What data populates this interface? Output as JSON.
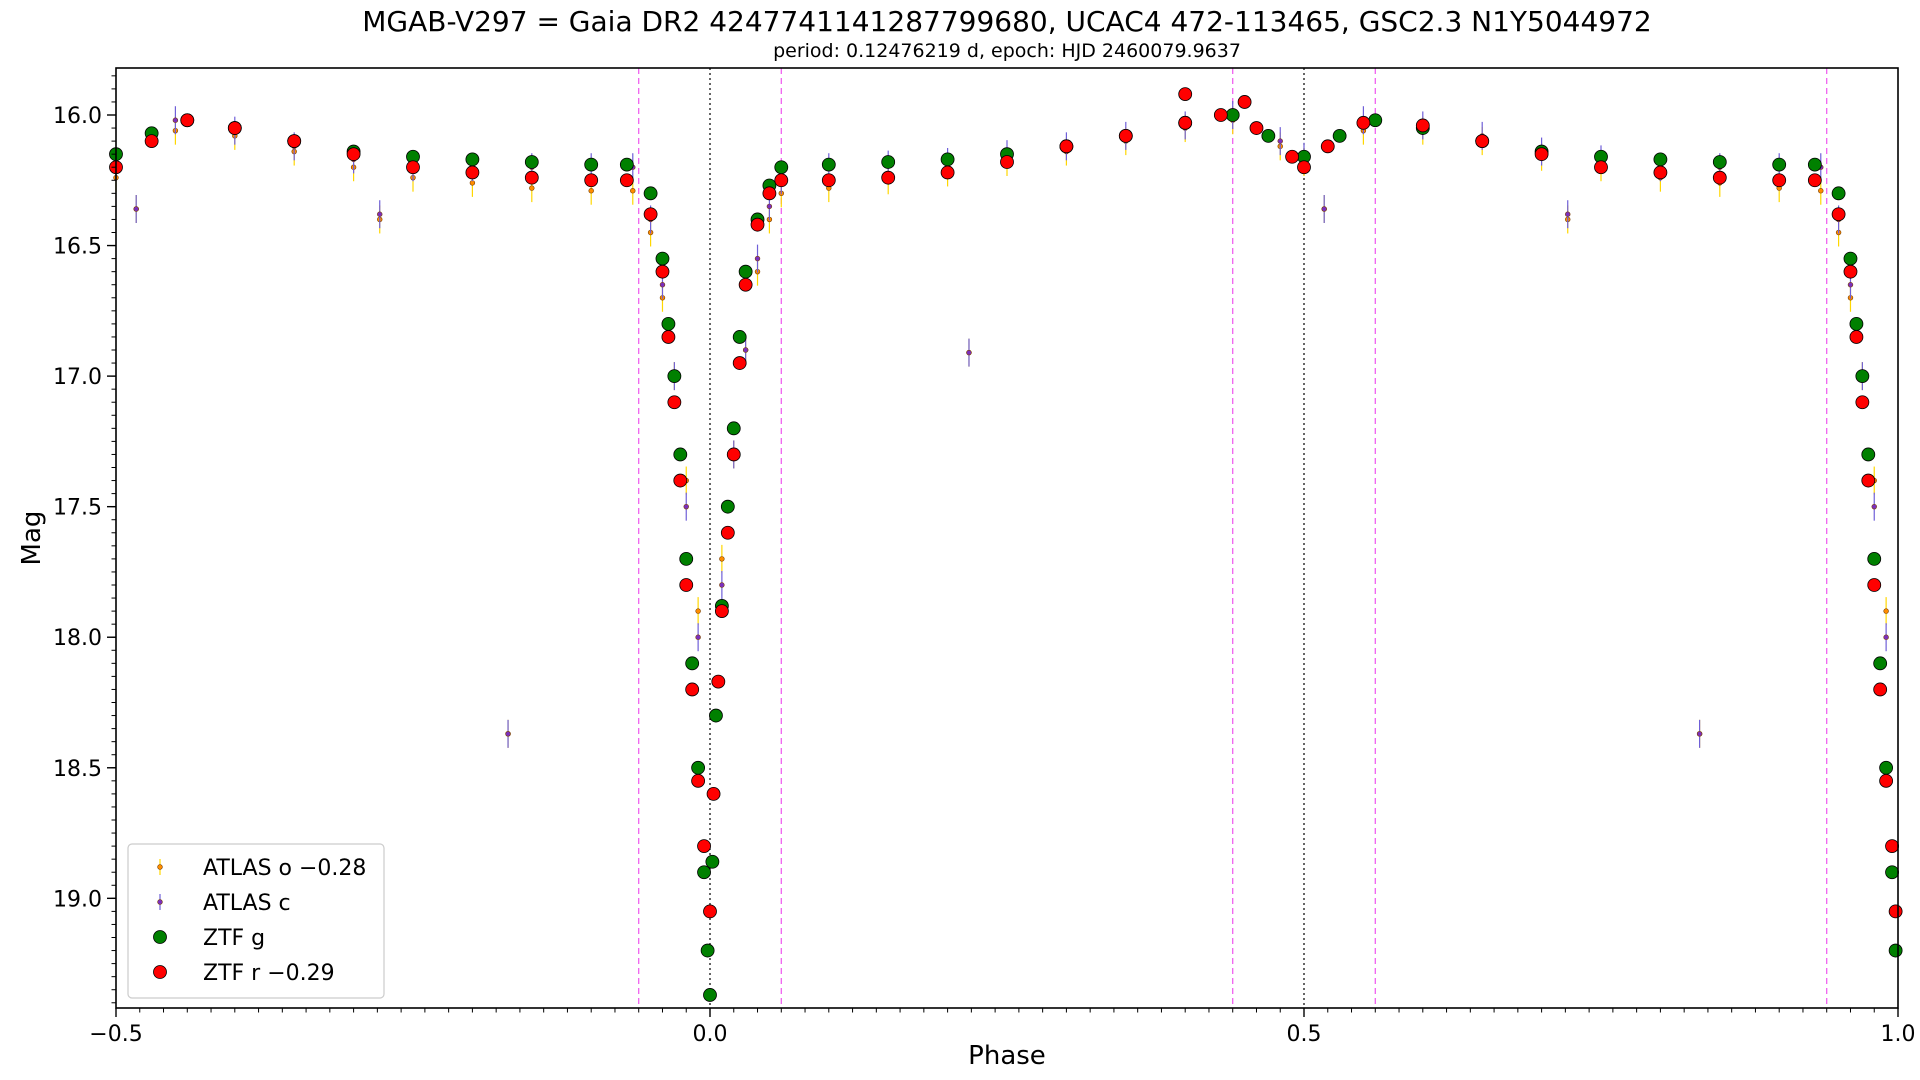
{
  "chart_data": {
    "type": "scatter",
    "title": "MGAB-V297 = Gaia DR2 4247741141287799680, UCAC4 472-113465, GSC2.3 N1Y5044972",
    "subtitle": "period: 0.12476219 d, epoch: HJD 2460079.9637",
    "xlabel": "Phase",
    "ylabel": "Mag",
    "xlim": [
      -0.5,
      1.0
    ],
    "ylim": [
      19.42,
      15.82
    ],
    "y_inverted": true,
    "x_ticks": [
      {
        "value": -0.5,
        "label": "−0.5"
      },
      {
        "value": 0.0,
        "label": "0.0"
      },
      {
        "value": 0.5,
        "label": "0.5"
      },
      {
        "value": 1.0,
        "label": "1.0"
      }
    ],
    "y_ticks": [
      {
        "value": 16.0,
        "label": "16.0"
      },
      {
        "value": 16.5,
        "label": "16.5"
      },
      {
        "value": 17.0,
        "label": "17.0"
      },
      {
        "value": 17.5,
        "label": "17.5"
      },
      {
        "value": 18.0,
        "label": "18.0"
      },
      {
        "value": 18.5,
        "label": "18.5"
      },
      {
        "value": 19.0,
        "label": "19.0"
      }
    ],
    "vlines_black_dotted": [
      0.0,
      0.5
    ],
    "vlines_magenta_dashed": [
      -0.06,
      0.06,
      0.44,
      0.56,
      0.94
    ],
    "legend_position": "lower-left",
    "grid": false,
    "series": [
      {
        "name": "ATLAS o −0.28",
        "color": "#ff8c00",
        "errcolor": "#ffd700",
        "marker": "small-dot",
        "points": [
          [
            -0.5,
            16.24
          ],
          [
            -0.45,
            16.06
          ],
          [
            -0.4,
            16.08
          ],
          [
            -0.35,
            16.14
          ],
          [
            -0.3,
            16.2
          ],
          [
            -0.25,
            16.24
          ],
          [
            -0.2,
            16.26
          ],
          [
            -0.15,
            16.28
          ],
          [
            -0.1,
            16.29
          ],
          [
            -0.065,
            16.29
          ],
          [
            -0.05,
            16.45
          ],
          [
            -0.04,
            16.7
          ],
          [
            -0.03,
            17.0
          ],
          [
            -0.02,
            17.4
          ],
          [
            -0.01,
            17.9
          ],
          [
            0.01,
            17.7
          ],
          [
            0.02,
            17.3
          ],
          [
            0.03,
            16.9
          ],
          [
            0.04,
            16.6
          ],
          [
            0.05,
            16.4
          ],
          [
            0.06,
            16.3
          ],
          [
            0.1,
            16.28
          ],
          [
            0.15,
            16.25
          ],
          [
            0.2,
            16.22
          ],
          [
            0.25,
            16.18
          ],
          [
            0.3,
            16.14
          ],
          [
            0.35,
            16.1
          ],
          [
            0.4,
            16.05
          ],
          [
            0.44,
            16.02
          ],
          [
            0.48,
            16.12
          ],
          [
            0.5,
            16.18
          ],
          [
            0.55,
            16.06
          ],
          [
            0.6,
            16.06
          ],
          [
            0.65,
            16.1
          ],
          [
            0.7,
            16.16
          ],
          [
            0.75,
            16.2
          ],
          [
            0.8,
            16.24
          ],
          [
            0.85,
            16.26
          ],
          [
            0.9,
            16.28
          ],
          [
            0.935,
            16.29
          ],
          [
            0.95,
            16.45
          ],
          [
            0.96,
            16.7
          ],
          [
            0.97,
            17.0
          ],
          [
            0.98,
            17.4
          ],
          [
            0.99,
            17.9
          ]
        ],
        "outliers": [
          [
            -0.17,
            18.37
          ],
          [
            0.218,
            16.91
          ],
          [
            0.833,
            18.37
          ],
          [
            -0.483,
            16.36
          ],
          [
            -0.278,
            16.4
          ],
          [
            0.517,
            16.36
          ],
          [
            0.722,
            16.4
          ]
        ]
      },
      {
        "name": "ATLAS c",
        "color": "#7b2fbf",
        "errcolor": "#6f5fd8",
        "marker": "small-dot",
        "points": [
          [
            -0.5,
            16.2
          ],
          [
            -0.45,
            16.02
          ],
          [
            -0.4,
            16.06
          ],
          [
            -0.35,
            16.12
          ],
          [
            -0.3,
            16.17
          ],
          [
            -0.25,
            16.2
          ],
          [
            -0.2,
            16.2
          ],
          [
            -0.15,
            16.2
          ],
          [
            -0.1,
            16.2
          ],
          [
            -0.065,
            16.2
          ],
          [
            -0.05,
            16.4
          ],
          [
            -0.04,
            16.65
          ],
          [
            -0.03,
            17.0
          ],
          [
            -0.02,
            17.5
          ],
          [
            -0.01,
            18.0
          ],
          [
            0.01,
            17.8
          ],
          [
            0.02,
            17.3
          ],
          [
            0.03,
            16.9
          ],
          [
            0.04,
            16.55
          ],
          [
            0.05,
            16.35
          ],
          [
            0.06,
            16.25
          ],
          [
            0.1,
            16.2
          ],
          [
            0.15,
            16.19
          ],
          [
            0.2,
            16.18
          ],
          [
            0.25,
            16.15
          ],
          [
            0.3,
            16.12
          ],
          [
            0.35,
            16.08
          ],
          [
            0.4,
            16.04
          ],
          [
            0.44,
            16.0
          ],
          [
            0.48,
            16.1
          ],
          [
            0.5,
            16.16
          ],
          [
            0.55,
            16.02
          ],
          [
            0.6,
            16.04
          ],
          [
            0.65,
            16.08
          ],
          [
            0.7,
            16.14
          ],
          [
            0.75,
            16.17
          ],
          [
            0.8,
            16.2
          ],
          [
            0.85,
            16.2
          ],
          [
            0.9,
            16.2
          ],
          [
            0.935,
            16.2
          ],
          [
            0.95,
            16.4
          ],
          [
            0.96,
            16.65
          ],
          [
            0.97,
            17.0
          ],
          [
            0.98,
            17.5
          ],
          [
            0.99,
            18.0
          ]
        ],
        "outliers": [
          [
            -0.17,
            18.37
          ],
          [
            0.218,
            16.91
          ],
          [
            0.833,
            18.37
          ],
          [
            -0.483,
            16.36
          ],
          [
            -0.278,
            16.38
          ],
          [
            0.517,
            16.36
          ],
          [
            0.722,
            16.38
          ]
        ]
      },
      {
        "name": "ZTF g",
        "color": "#008000",
        "marker": "large-circle",
        "points": [
          [
            -0.5,
            16.15
          ],
          [
            -0.47,
            16.07
          ],
          [
            -0.44,
            16.02
          ],
          [
            -0.4,
            16.05
          ],
          [
            -0.35,
            16.1
          ],
          [
            -0.3,
            16.14
          ],
          [
            -0.25,
            16.16
          ],
          [
            -0.2,
            16.17
          ],
          [
            -0.15,
            16.18
          ],
          [
            -0.1,
            16.19
          ],
          [
            -0.07,
            16.19
          ],
          [
            -0.05,
            16.3
          ],
          [
            -0.04,
            16.55
          ],
          [
            -0.035,
            16.8
          ],
          [
            -0.03,
            17.0
          ],
          [
            -0.025,
            17.3
          ],
          [
            -0.02,
            17.7
          ],
          [
            -0.015,
            18.1
          ],
          [
            -0.01,
            18.5
          ],
          [
            -0.005,
            18.9
          ],
          [
            -0.002,
            19.2
          ],
          [
            0.0,
            19.37
          ],
          [
            0.002,
            18.86
          ],
          [
            0.005,
            18.3
          ],
          [
            0.01,
            17.88
          ],
          [
            0.015,
            17.5
          ],
          [
            0.02,
            17.2
          ],
          [
            0.025,
            16.85
          ],
          [
            0.03,
            16.6
          ],
          [
            0.04,
            16.4
          ],
          [
            0.05,
            16.27
          ],
          [
            0.06,
            16.2
          ],
          [
            0.1,
            16.19
          ],
          [
            0.15,
            16.18
          ],
          [
            0.2,
            16.17
          ],
          [
            0.25,
            16.15
          ],
          [
            0.3,
            16.12
          ],
          [
            0.35,
            16.08
          ],
          [
            0.4,
            16.03
          ],
          [
            0.44,
            16.0
          ],
          [
            0.47,
            16.08
          ],
          [
            0.5,
            16.16
          ],
          [
            0.53,
            16.08
          ],
          [
            0.56,
            16.02
          ],
          [
            0.6,
            16.05
          ],
          [
            0.65,
            16.1
          ],
          [
            0.7,
            16.14
          ],
          [
            0.75,
            16.16
          ],
          [
            0.8,
            16.17
          ],
          [
            0.85,
            16.18
          ],
          [
            0.9,
            16.19
          ],
          [
            0.93,
            16.19
          ],
          [
            0.95,
            16.3
          ],
          [
            0.96,
            16.55
          ],
          [
            0.965,
            16.8
          ],
          [
            0.97,
            17.0
          ],
          [
            0.975,
            17.3
          ],
          [
            0.98,
            17.7
          ],
          [
            0.985,
            18.1
          ],
          [
            0.99,
            18.5
          ],
          [
            0.995,
            18.9
          ],
          [
            0.998,
            19.2
          ]
        ]
      },
      {
        "name": "ZTF r −0.29",
        "color": "#ff0000",
        "marker": "large-circle",
        "points": [
          [
            -0.5,
            16.2
          ],
          [
            -0.47,
            16.1
          ],
          [
            -0.44,
            16.02
          ],
          [
            -0.4,
            16.05
          ],
          [
            -0.35,
            16.1
          ],
          [
            -0.3,
            16.15
          ],
          [
            -0.25,
            16.2
          ],
          [
            -0.2,
            16.22
          ],
          [
            -0.15,
            16.24
          ],
          [
            -0.1,
            16.25
          ],
          [
            -0.07,
            16.25
          ],
          [
            -0.05,
            16.38
          ],
          [
            -0.04,
            16.6
          ],
          [
            -0.035,
            16.85
          ],
          [
            -0.03,
            17.1
          ],
          [
            -0.025,
            17.4
          ],
          [
            -0.02,
            17.8
          ],
          [
            -0.015,
            18.2
          ],
          [
            -0.01,
            18.55
          ],
          [
            -0.005,
            18.8
          ],
          [
            0.0,
            19.05
          ],
          [
            0.003,
            18.6
          ],
          [
            0.007,
            18.17
          ],
          [
            0.01,
            17.9
          ],
          [
            0.015,
            17.6
          ],
          [
            0.02,
            17.3
          ],
          [
            0.025,
            16.95
          ],
          [
            0.03,
            16.65
          ],
          [
            0.04,
            16.42
          ],
          [
            0.05,
            16.3
          ],
          [
            0.06,
            16.25
          ],
          [
            0.1,
            16.25
          ],
          [
            0.15,
            16.24
          ],
          [
            0.2,
            16.22
          ],
          [
            0.25,
            16.18
          ],
          [
            0.3,
            16.12
          ],
          [
            0.35,
            16.08
          ],
          [
            0.4,
            16.03
          ],
          [
            0.43,
            16.0
          ],
          [
            0.46,
            16.05
          ],
          [
            0.49,
            16.16
          ],
          [
            0.5,
            16.2
          ],
          [
            0.52,
            16.12
          ],
          [
            0.55,
            16.03
          ],
          [
            0.6,
            16.04
          ],
          [
            0.65,
            16.1
          ],
          [
            0.7,
            16.15
          ],
          [
            0.75,
            16.2
          ],
          [
            0.8,
            16.22
          ],
          [
            0.85,
            16.24
          ],
          [
            0.9,
            16.25
          ],
          [
            0.93,
            16.25
          ],
          [
            0.95,
            16.38
          ],
          [
            0.96,
            16.6
          ],
          [
            0.965,
            16.85
          ],
          [
            0.97,
            17.1
          ],
          [
            0.975,
            17.4
          ],
          [
            0.98,
            17.8
          ],
          [
            0.985,
            18.2
          ],
          [
            0.99,
            18.55
          ],
          [
            0.995,
            18.8
          ],
          [
            0.998,
            19.05
          ]
        ],
        "outliers": [
          [
            0.4,
            15.92
          ],
          [
            0.45,
            15.95
          ]
        ]
      }
    ]
  }
}
